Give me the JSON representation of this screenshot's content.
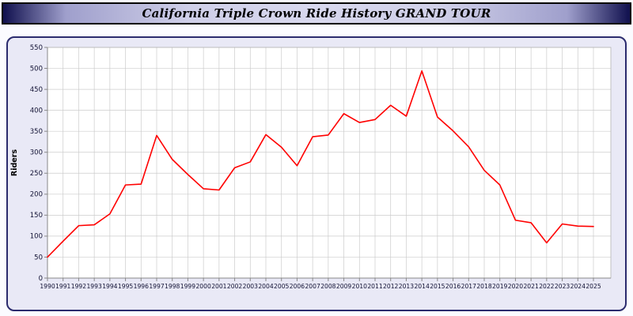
{
  "page": {
    "title": "California Triple Crown Ride History GRAND TOUR"
  },
  "colors": {
    "line": "#ff0000",
    "panel_bg": "#e9e9f6",
    "panel_border": "#2b2b6e",
    "plot_bg": "#ffffff",
    "grid": "#cccccc",
    "axis": "#888888",
    "tick_text": "#111133"
  },
  "chart_data": {
    "type": "line",
    "title": "California Triple Crown Ride History GRAND TOUR",
    "xlabel": "",
    "ylabel": "Riders",
    "ylim": [
      0,
      550
    ],
    "ytick_step": 50,
    "grid": true,
    "legend": "none",
    "categories": [
      "1990",
      "1991",
      "1992",
      "1993",
      "1994",
      "1995",
      "1996",
      "1997",
      "1998",
      "1999",
      "2000",
      "2001",
      "2002",
      "2003",
      "2004",
      "2005",
      "2006",
      "2007",
      "2008",
      "2009",
      "2010",
      "2011",
      "2012",
      "2013",
      "2014",
      "2015",
      "2016",
      "2017",
      "2018",
      "2019",
      "2020",
      "2021",
      "2022",
      "2023",
      "2024",
      "2025"
    ],
    "series": [
      {
        "name": "Riders",
        "values": [
          50,
          88,
          125,
          127,
          153,
          222,
          224,
          340,
          283,
          247,
          213,
          210,
          263,
          277,
          342,
          312,
          268,
          337,
          341,
          392,
          371,
          378,
          412,
          386,
          494,
          384,
          351,
          313,
          257,
          222,
          138,
          132,
          84,
          129,
          124,
          123
        ]
      }
    ]
  }
}
